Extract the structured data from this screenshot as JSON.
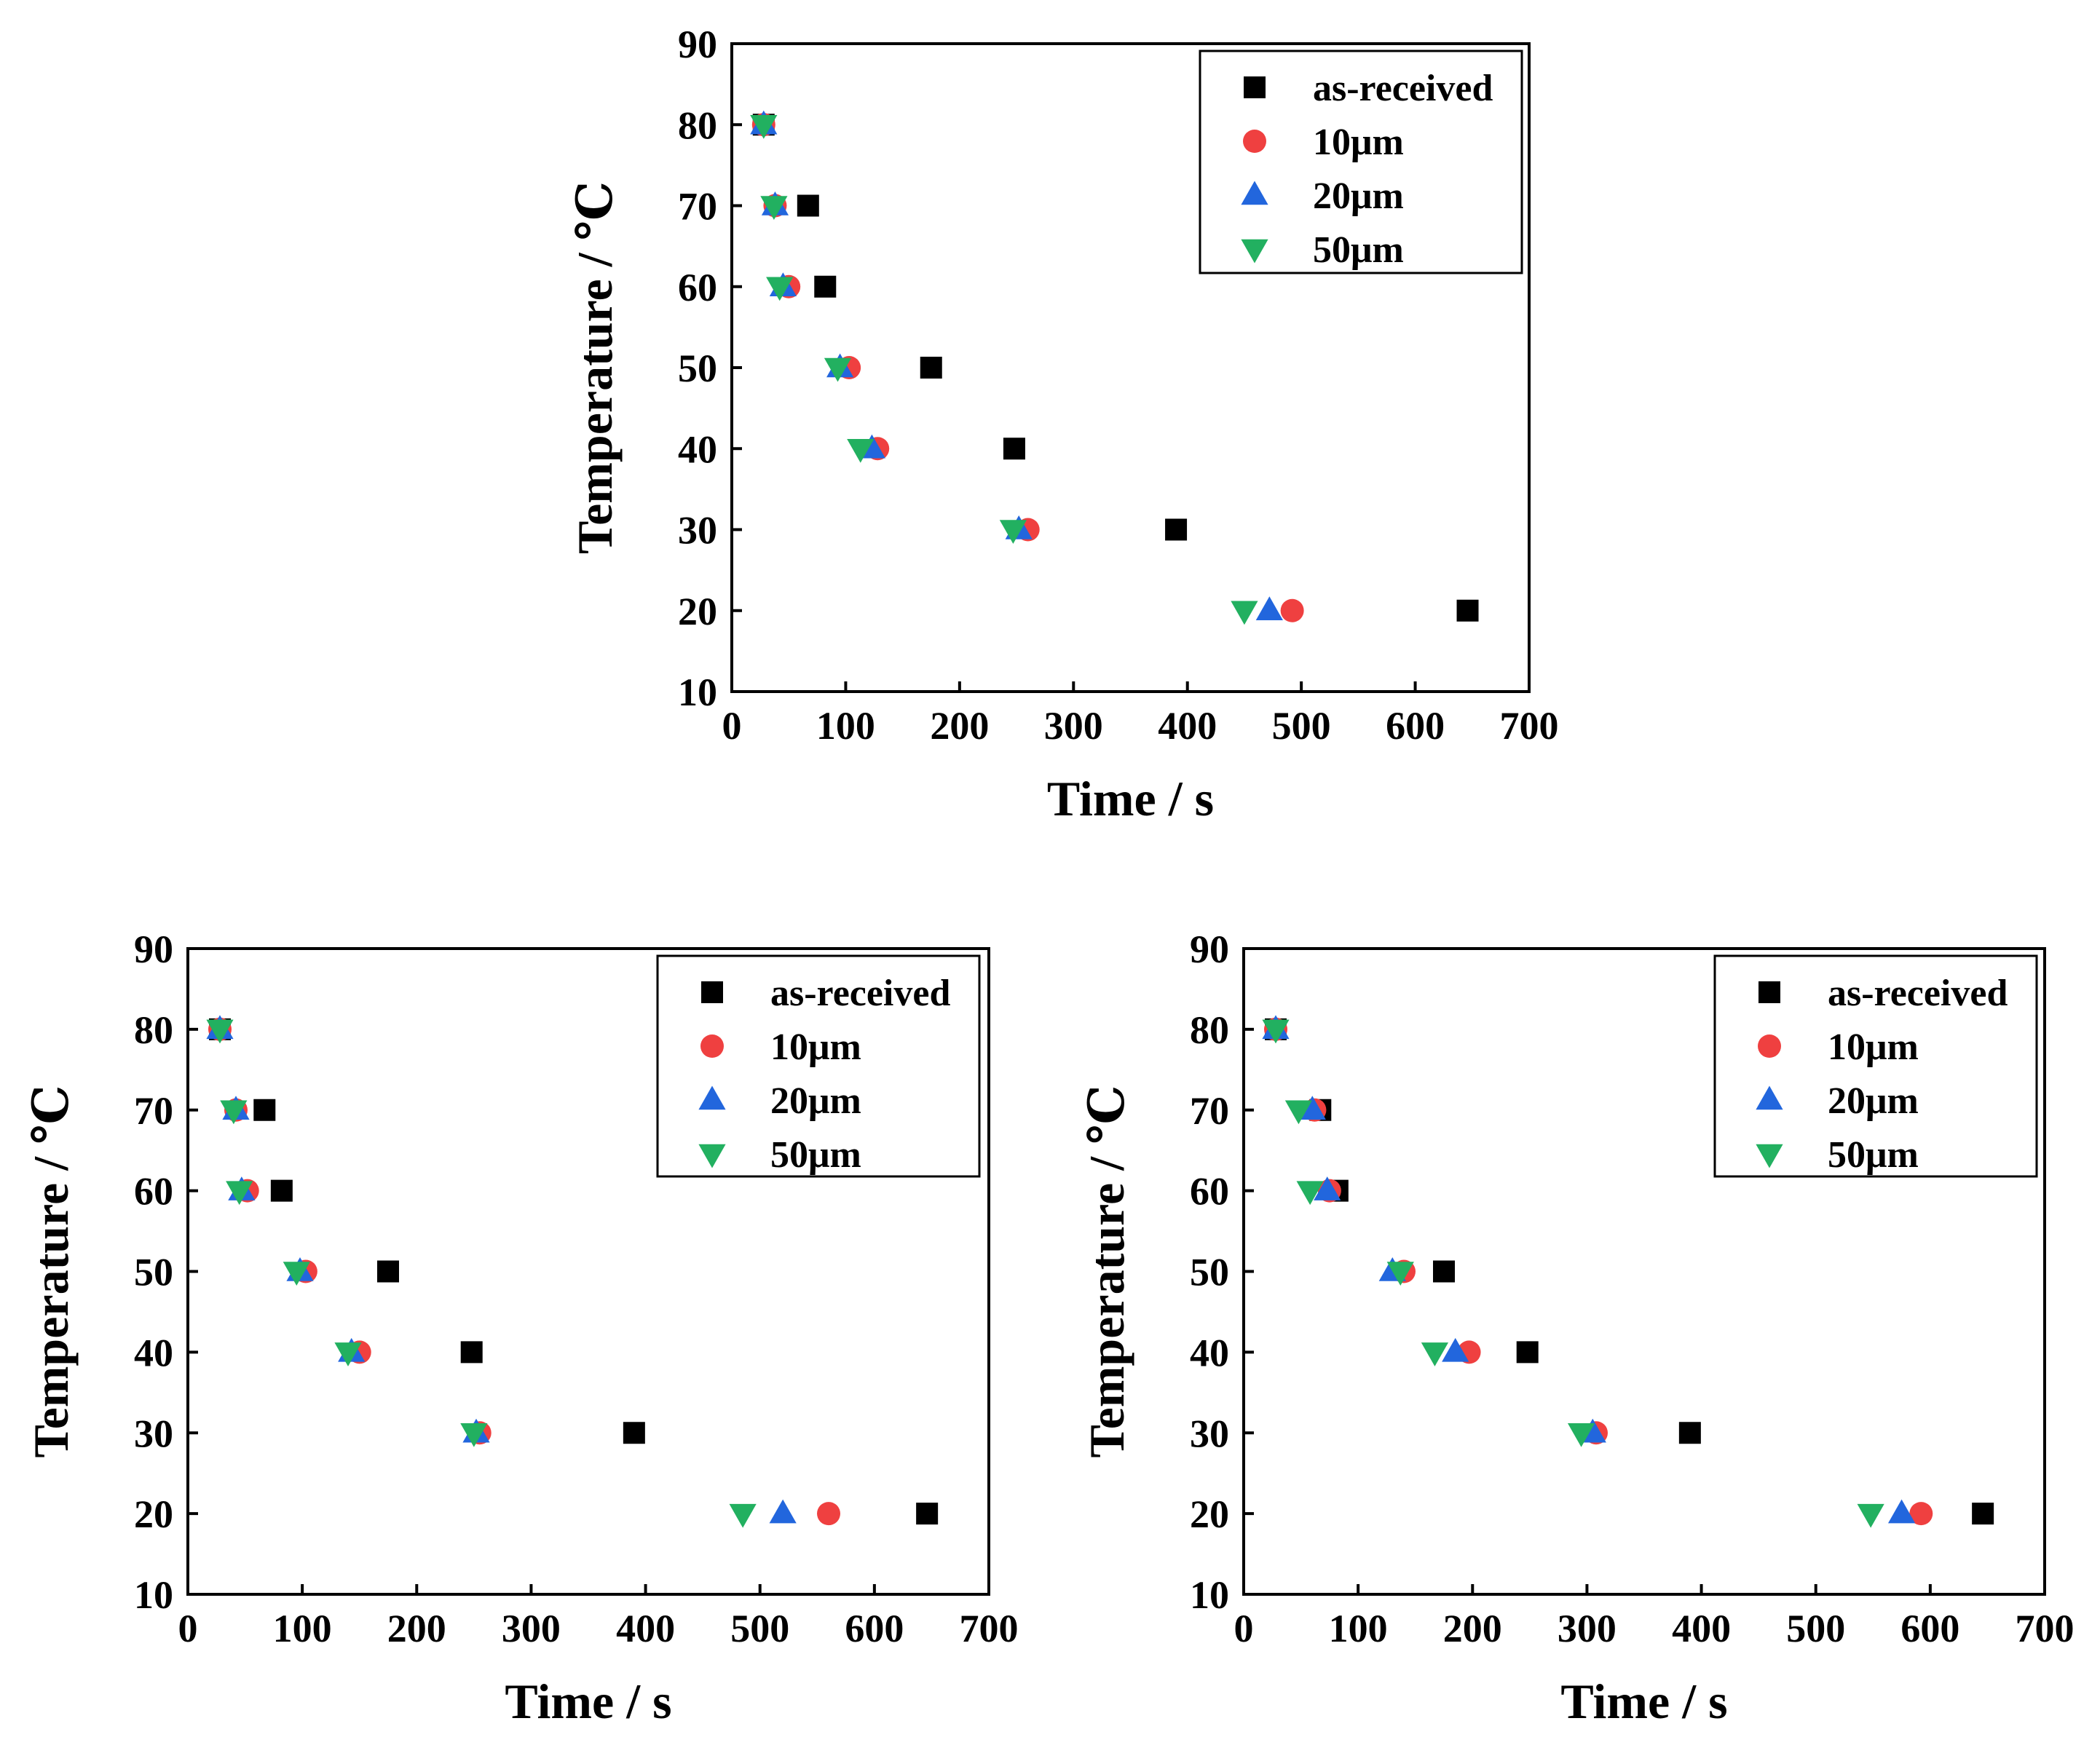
{
  "chart_data": [
    {
      "type": "scatter",
      "panel": "top",
      "xlabel": "Time / s",
      "ylabel": "Temperature / ℃",
      "xlim": [
        0,
        700
      ],
      "ylim": [
        10,
        90
      ],
      "xticks": [
        0,
        100,
        200,
        300,
        400,
        500,
        600,
        700
      ],
      "yticks": [
        10,
        20,
        30,
        40,
        50,
        60,
        70,
        80,
        90
      ],
      "legend": "top-right",
      "series": [
        {
          "name": "as-received",
          "marker": "square",
          "color": "#000000",
          "points": [
            [
              28,
              80
            ],
            [
              67,
              70
            ],
            [
              82,
              60
            ],
            [
              175,
              50
            ],
            [
              248,
              40
            ],
            [
              390,
              30
            ],
            [
              646,
              20
            ]
          ]
        },
        {
          "name": "10μm",
          "marker": "circle",
          "color": "#ef4040",
          "points": [
            [
              28,
              80
            ],
            [
              38,
              70
            ],
            [
              50,
              60
            ],
            [
              103,
              50
            ],
            [
              128,
              40
            ],
            [
              260,
              30
            ],
            [
              492,
              20
            ]
          ]
        },
        {
          "name": "20μm",
          "marker": "triangle-up",
          "color": "#2266dd",
          "points": [
            [
              28,
              80
            ],
            [
              38,
              70
            ],
            [
              45,
              60
            ],
            [
              95,
              50
            ],
            [
              123,
              40
            ],
            [
              252,
              30
            ],
            [
              472,
              20
            ]
          ]
        },
        {
          "name": "50μm",
          "marker": "triangle-down",
          "color": "#22b060",
          "points": [
            [
              28,
              80
            ],
            [
              37,
              70
            ],
            [
              42,
              60
            ],
            [
              93,
              50
            ],
            [
              113,
              40
            ],
            [
              247,
              30
            ],
            [
              450,
              20
            ]
          ]
        }
      ]
    },
    {
      "type": "scatter",
      "panel": "bottom-left",
      "xlabel": "Time / s",
      "ylabel": "Temperature / ℃",
      "xlim": [
        0,
        700
      ],
      "ylim": [
        10,
        90
      ],
      "xticks": [
        0,
        100,
        200,
        300,
        400,
        500,
        600,
        700
      ],
      "yticks": [
        10,
        20,
        30,
        40,
        50,
        60,
        70,
        80,
        90
      ],
      "legend": "top-right",
      "series": [
        {
          "name": "as-received",
          "marker": "square",
          "color": "#000000",
          "points": [
            [
              28,
              80
            ],
            [
              67,
              70
            ],
            [
              82,
              60
            ],
            [
              175,
              50
            ],
            [
              248,
              40
            ],
            [
              390,
              30
            ],
            [
              646,
              20
            ]
          ]
        },
        {
          "name": "10μm",
          "marker": "circle",
          "color": "#ef4040",
          "points": [
            [
              28,
              80
            ],
            [
              42,
              70
            ],
            [
              52,
              60
            ],
            [
              103,
              50
            ],
            [
              150,
              40
            ],
            [
              255,
              30
            ],
            [
              560,
              20
            ]
          ]
        },
        {
          "name": "20μm",
          "marker": "triangle-up",
          "color": "#2266dd",
          "points": [
            [
              28,
              80
            ],
            [
              42,
              70
            ],
            [
              47,
              60
            ],
            [
              98,
              50
            ],
            [
              143,
              40
            ],
            [
              252,
              30
            ],
            [
              520,
              20
            ]
          ]
        },
        {
          "name": "50μm",
          "marker": "triangle-down",
          "color": "#22b060",
          "points": [
            [
              28,
              80
            ],
            [
              40,
              70
            ],
            [
              45,
              60
            ],
            [
              95,
              50
            ],
            [
              140,
              40
            ],
            [
              250,
              30
            ],
            [
              485,
              20
            ]
          ]
        }
      ]
    },
    {
      "type": "scatter",
      "panel": "bottom-right",
      "xlabel": "Time / s",
      "ylabel": "Temperature / ℃",
      "xlim": [
        0,
        700
      ],
      "ylim": [
        10,
        90
      ],
      "xticks": [
        0,
        100,
        200,
        300,
        400,
        500,
        600,
        700
      ],
      "yticks": [
        10,
        20,
        30,
        40,
        50,
        60,
        70,
        80,
        90
      ],
      "legend": "top-right",
      "series": [
        {
          "name": "as-received",
          "marker": "square",
          "color": "#000000",
          "points": [
            [
              28,
              80
            ],
            [
              67,
              70
            ],
            [
              82,
              60
            ],
            [
              175,
              50
            ],
            [
              248,
              40
            ],
            [
              390,
              30
            ],
            [
              646,
              20
            ]
          ]
        },
        {
          "name": "10μm",
          "marker": "circle",
          "color": "#ef4040",
          "points": [
            [
              28,
              80
            ],
            [
              62,
              70
            ],
            [
              75,
              60
            ],
            [
              140,
              50
            ],
            [
              197,
              40
            ],
            [
              308,
              30
            ],
            [
              592,
              20
            ]
          ]
        },
        {
          "name": "20μm",
          "marker": "triangle-up",
          "color": "#2266dd",
          "points": [
            [
              28,
              80
            ],
            [
              60,
              70
            ],
            [
              73,
              60
            ],
            [
              130,
              50
            ],
            [
              185,
              40
            ],
            [
              305,
              30
            ],
            [
              575,
              20
            ]
          ]
        },
        {
          "name": "50μm",
          "marker": "triangle-down",
          "color": "#22b060",
          "points": [
            [
              28,
              80
            ],
            [
              48,
              70
            ],
            [
              58,
              60
            ],
            [
              137,
              50
            ],
            [
              167,
              40
            ],
            [
              295,
              30
            ],
            [
              548,
              20
            ]
          ]
        }
      ]
    }
  ]
}
